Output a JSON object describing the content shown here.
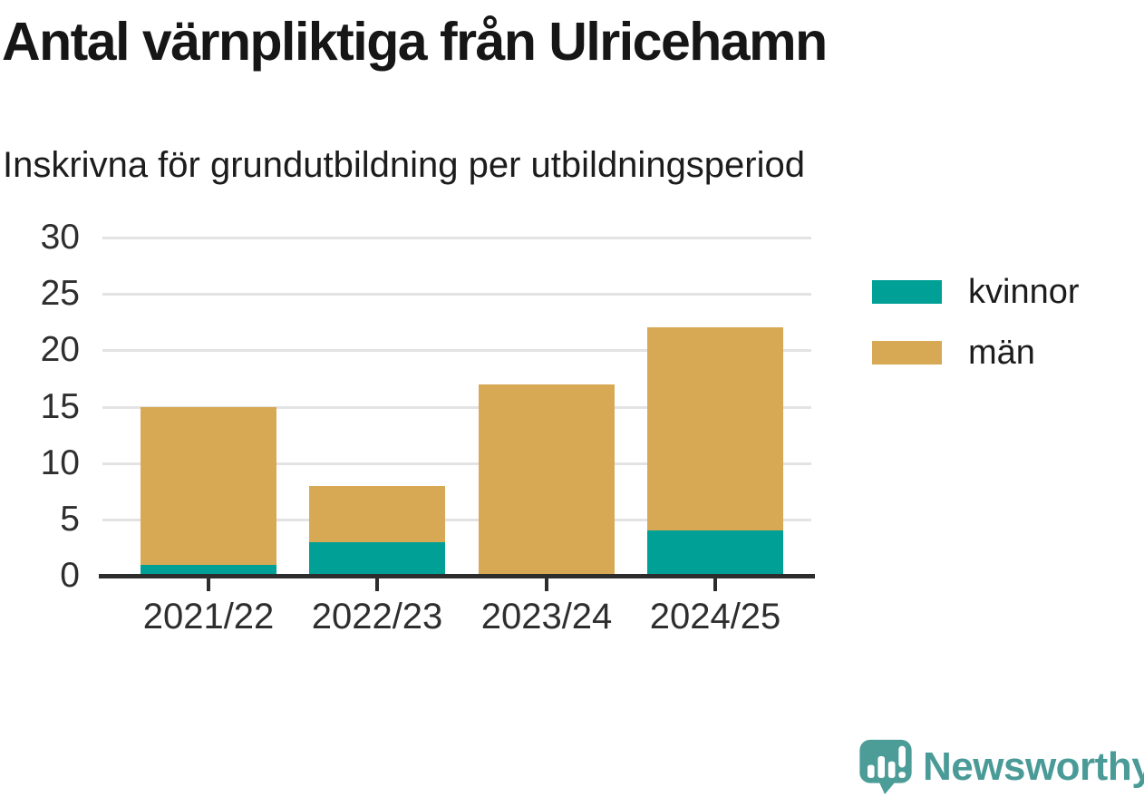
{
  "header": {
    "title": "Antal värnpliktiga från Ulricehamn",
    "subtitle": "Inskrivna för grundutbildning per utbildningsperiod"
  },
  "chart_data": {
    "type": "bar",
    "stacked": true,
    "title": "Antal värnpliktiga från Ulricehamn",
    "subtitle": "Inskrivna för grundutbildning per utbildningsperiod",
    "categories": [
      "2021/22",
      "2022/23",
      "2023/24",
      "2024/25"
    ],
    "series": [
      {
        "name": "kvinnor",
        "color": "#00a096",
        "values": [
          1,
          3,
          0,
          4
        ]
      },
      {
        "name": "män",
        "color": "#d8a955",
        "values": [
          14,
          5,
          17,
          18
        ]
      }
    ],
    "totals": [
      15,
      8,
      17,
      22
    ],
    "xlabel": "",
    "ylabel": "",
    "ylim": [
      0,
      30
    ],
    "yticks": [
      0,
      5,
      10,
      15,
      20,
      25,
      30
    ],
    "grid": true,
    "legend_position": "right"
  },
  "colors": {
    "gridline": "#e3e3e3",
    "axis": "#2d2d2d",
    "tick_text": "#2e2e2e",
    "title_text": "#161616",
    "logo_teal": "#4a9b98"
  },
  "logo": {
    "text": "Newsworthy"
  }
}
